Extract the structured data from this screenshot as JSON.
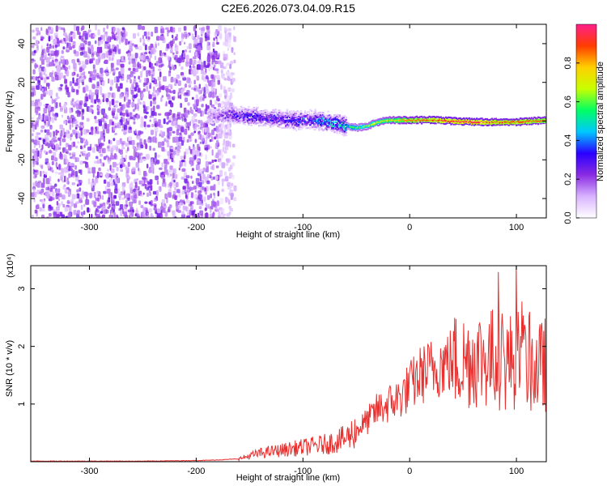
{
  "title": "C2E6.2026.073.04.09.R15",
  "chart_data": [
    {
      "type": "heatmap",
      "title": "C2E6.2026.073.04.09.R15",
      "xlabel": "Height of straight line (km)",
      "ylabel": "Frequency (Hz)",
      "xlim": [
        -355,
        128
      ],
      "ylim": [
        -50,
        50
      ],
      "x_ticks": [
        -300,
        -200,
        -100,
        0,
        100
      ],
      "y_ticks": [
        -40,
        -20,
        0,
        20,
        40
      ],
      "colorbar": {
        "label": "Normalized spectral amplitude",
        "range": [
          0,
          1
        ],
        "ticks": [
          "0.0",
          "0.2",
          "0.4",
          "0.6",
          "0.8"
        ],
        "colors": [
          "#ffffff",
          "#d9b3ff",
          "#8a2be2",
          "#2a00ff",
          "#00c8ff",
          "#00ff64",
          "#c8ff00",
          "#ffd000",
          "#ff3c00",
          "#ff1e8c"
        ]
      },
      "signal_trace": {
        "x": [
          -190,
          -170,
          -150,
          -130,
          -110,
          -90,
          -75,
          -60,
          -50,
          -40,
          -30,
          -20,
          -10,
          0,
          20,
          40,
          60,
          80,
          100,
          128
        ],
        "freq_hz": [
          3,
          4,
          3,
          2,
          1,
          1,
          0,
          -2,
          -3,
          -2,
          0,
          1,
          1,
          1,
          1,
          0.5,
          0,
          0,
          0,
          1
        ],
        "amplitude": [
          0.15,
          0.3,
          0.35,
          0.35,
          0.35,
          0.4,
          0.5,
          0.55,
          0.6,
          0.65,
          0.7,
          0.75,
          0.8,
          0.85,
          0.9,
          0.95,
          0.95,
          0.9,
          0.9,
          0.85
        ]
      },
      "noise_region_x": [
        -355,
        -155
      ]
    },
    {
      "type": "line",
      "xlabel": "Height of straight line (km)",
      "ylabel": "SNR (10 * v/v)",
      "y_scale_note": "(x10⁴)",
      "xlim": [
        -355,
        128
      ],
      "ylim": [
        0,
        3.4
      ],
      "x_ticks": [
        -300,
        -200,
        -100,
        0,
        100
      ],
      "y_ticks": [
        1,
        2,
        3
      ],
      "series": [
        {
          "color": "#e8302e",
          "x": [
            -355,
            -300,
            -250,
            -200,
            -180,
            -160,
            -150,
            -140,
            -120,
            -100,
            -80,
            -60,
            -50,
            -40,
            -30,
            -20,
            -10,
            0,
            10,
            20,
            30,
            40,
            50,
            60,
            70,
            80,
            90,
            100,
            110,
            120,
            128
          ],
          "values": [
            0.01,
            0.01,
            0.01,
            0.02,
            0.03,
            0.05,
            0.1,
            0.15,
            0.2,
            0.25,
            0.3,
            0.4,
            0.55,
            0.7,
            0.9,
            1.0,
            1.1,
            1.3,
            1.5,
            1.6,
            1.7,
            1.75,
            1.75,
            1.8,
            1.8,
            1.8,
            1.7,
            1.8,
            1.7,
            1.6,
            1.7
          ]
        }
      ]
    }
  ]
}
